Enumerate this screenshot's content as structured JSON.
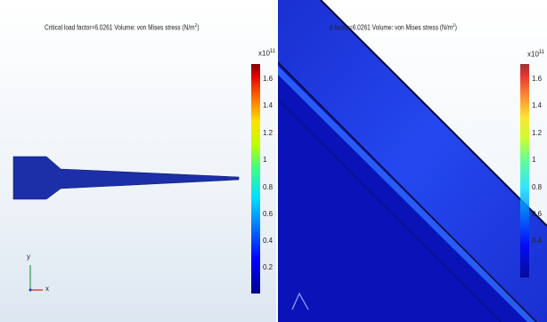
{
  "left_plot": {
    "title": "Critical load factor=6.0261   Volume: von Mises stress (N/m",
    "title_sup": "2",
    "title_close": ")",
    "colorbar": {
      "exponent_base": "x10",
      "exponent_power": "11",
      "ticks": [
        "1.6",
        "1.4",
        "1.2",
        "1",
        "0.8",
        "0.6",
        "0.4",
        "0.2"
      ]
    },
    "axis_triad": {
      "y_label": "y",
      "x_label": "x"
    }
  },
  "right_plot": {
    "title": "d factor=6.0261   Volume: von Mises stress (N/m",
    "title_sup": "2",
    "title_close": ")",
    "colorbar": {
      "exponent_base": "x10",
      "exponent_power": "11",
      "ticks": [
        "1.6",
        "1.4",
        "1.2",
        "1",
        "0.8",
        "0.6",
        "0.4"
      ]
    }
  },
  "colors": {
    "structure_blue": "#1c2fa8",
    "deep_blue": "#0a13b8",
    "highlight_blue": "#2a5cff"
  }
}
